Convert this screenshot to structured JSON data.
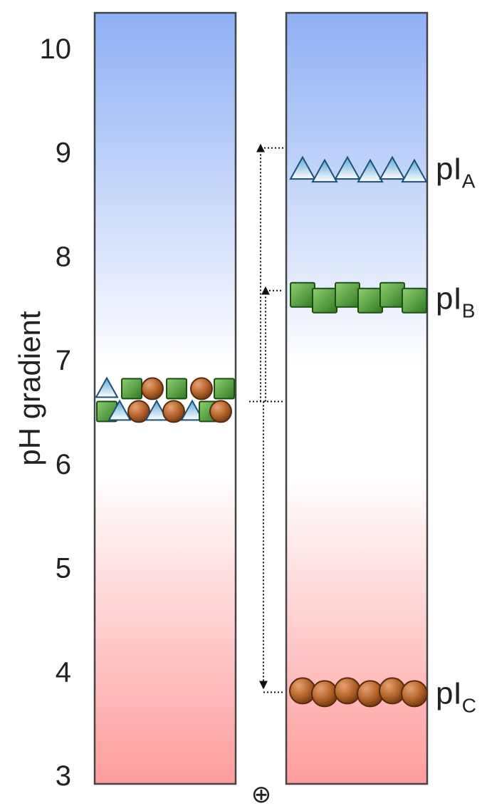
{
  "y_axis": {
    "label": "pH gradient",
    "ticks": [
      "10",
      "9",
      "8",
      "7",
      "6",
      "5",
      "4",
      "3"
    ]
  },
  "anode_symbol": "⊕",
  "bands": [
    {
      "id": "A",
      "label": "pI",
      "subscript": "A",
      "ph": 8.85,
      "shape": "triangle",
      "color": "#7ec8e8"
    },
    {
      "id": "B",
      "label": "pI",
      "subscript": "B",
      "ph": 7.6,
      "shape": "square",
      "color": "#4e9a3a"
    },
    {
      "id": "C",
      "label": "pI",
      "subscript": "C",
      "ph": 3.8,
      "shape": "circle",
      "color": "#b5652a"
    }
  ],
  "mixture": {
    "ph": 6.6
  },
  "gradient_colors": {
    "basic": "#8fb0f5",
    "neutral": "#ffffff",
    "acidic": "#ff9c9c"
  }
}
